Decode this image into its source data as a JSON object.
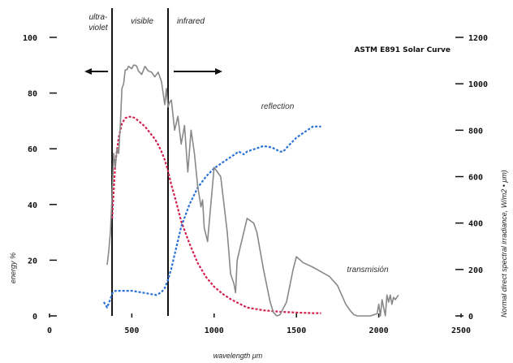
{
  "chart_data": {
    "type": "line",
    "title": "ASTM E891 Solar Curve",
    "xlabel": "wavelength μm",
    "ylabel": "energy %",
    "y2label": "Normal direct spectral irradiance, W/m2 • μm)",
    "xlim": [
      0,
      2500
    ],
    "ylim": [
      0,
      100
    ],
    "y2lim": [
      0,
      1200
    ],
    "x_ticks": [
      0,
      500,
      1000,
      1500,
      2000,
      2500
    ],
    "x_tick_labels": [
      "0",
      "500",
      "1000",
      "1500",
      "2000",
      "2500"
    ],
    "y_ticks": [
      0,
      20,
      40,
      60,
      80,
      100
    ],
    "y_tick_labels": [
      "0",
      "20",
      "40",
      "60",
      "80",
      "100"
    ],
    "y2_ticks": [
      0,
      200,
      400,
      600,
      800,
      1000,
      1200
    ],
    "y2_tick_labels": [
      "0",
      "200",
      "400",
      "600",
      "800",
      "1000",
      "1200"
    ],
    "grid": false,
    "regions": [
      {
        "label": "ultra-",
        "label2": "violet",
        "x_start": 0,
        "x_end": 380
      },
      {
        "label": "visible",
        "x_start": 380,
        "x_end": 720
      },
      {
        "label": "infrared",
        "x_start": 720,
        "x_end": 2500
      }
    ],
    "region_boundaries": [
      380,
      720
    ],
    "annotations": {
      "reflection": "reflection",
      "transmission": "transmisión"
    },
    "series": [
      {
        "color": "#d2204f",
        "dash": true,
        "axis": "left",
        "x": [
          380,
          400,
          420,
          440,
          460,
          480,
          500,
          520,
          540,
          560,
          580,
          600,
          620,
          640,
          660,
          680,
          700,
          720,
          740,
          760,
          780,
          800,
          850,
          900,
          950,
          1000,
          1050,
          1100,
          1150,
          1200,
          1300,
          1400,
          1500,
          1600,
          1650
        ],
        "values": [
          35,
          55,
          64,
          69,
          71,
          71.5,
          71.5,
          71,
          70,
          69,
          68,
          66.5,
          65,
          63.5,
          61.5,
          59,
          56,
          52,
          47,
          43,
          38.5,
          34,
          26,
          19,
          14,
          10.5,
          8,
          6,
          4.5,
          3,
          2,
          1.5,
          1.2,
          1,
          1
        ]
      },
      {
        "color": "#2a72d6",
        "dash": true,
        "axis": "left",
        "x": [
          330,
          350,
          370,
          380,
          400,
          450,
          500,
          550,
          600,
          650,
          680,
          700,
          720,
          740,
          760,
          780,
          800,
          850,
          900,
          950,
          1000,
          1050,
          1100,
          1150,
          1180,
          1200,
          1250,
          1300,
          1350,
          1400,
          1420,
          1450,
          1500,
          1550,
          1600,
          1650
        ],
        "values": [
          5,
          3,
          6,
          8,
          9,
          9,
          9,
          8.5,
          8,
          7.5,
          8.5,
          10,
          13,
          17,
          22,
          27,
          32,
          40,
          46,
          50,
          53,
          55,
          57,
          59,
          58,
          59,
          60,
          61,
          60.5,
          59,
          59,
          61,
          64,
          66,
          68,
          68
        ]
      },
      {
        "color": "#888888",
        "dash": false,
        "axis": "right",
        "x": [
          350,
          360,
          370,
          380,
          390,
          400,
          410,
          420,
          430,
          440,
          450,
          460,
          470,
          480,
          490,
          500,
          510,
          520,
          530,
          540,
          560,
          580,
          600,
          620,
          640,
          660,
          680,
          700,
          710,
          720,
          730,
          740,
          760,
          780,
          800,
          820,
          840,
          860,
          880,
          900,
          920,
          930,
          940,
          960,
          1000,
          1040,
          1080,
          1100,
          1120,
          1130,
          1140,
          1160,
          1200,
          1240,
          1260,
          1300,
          1340,
          1360,
          1380,
          1400,
          1440,
          1480,
          1500,
          1540,
          1600,
          1650,
          1700,
          1750,
          1800,
          1830,
          1850,
          1870,
          1900,
          1950,
          1990,
          2000,
          2010,
          2020,
          2040,
          2050,
          2060,
          2070,
          2080,
          2090,
          2100,
          2120
        ],
        "values": [
          220,
          280,
          360,
          520,
          700,
          640,
          720,
          700,
          820,
          980,
          1000,
          1060,
          1060,
          1075,
          1070,
          1065,
          1080,
          1080,
          1075,
          1055,
          1040,
          1075,
          1055,
          1050,
          1030,
          1050,
          1010,
          910,
          980,
          900,
          920,
          930,
          800,
          860,
          740,
          820,
          620,
          800,
          700,
          560,
          470,
          500,
          380,
          320,
          640,
          600,
          360,
          180,
          140,
          100,
          240,
          300,
          420,
          400,
          360,
          200,
          60,
          15,
          0,
          5,
          60,
          200,
          255,
          230,
          210,
          190,
          170,
          130,
          50,
          20,
          5,
          0,
          0,
          0,
          10,
          50,
          0,
          70,
          0,
          90,
          60,
          90,
          50,
          80,
          70,
          90
        ]
      }
    ]
  }
}
